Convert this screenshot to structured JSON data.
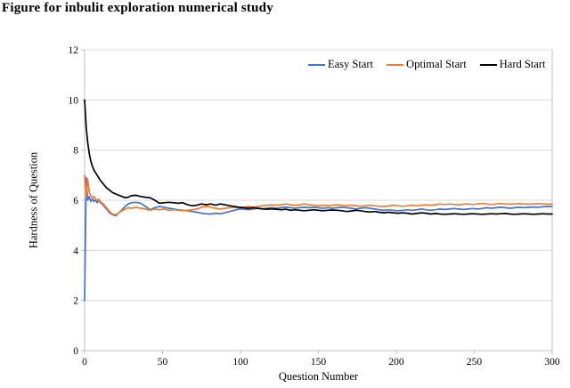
{
  "page": {
    "title": "Figure for inbulit exploration numerical study"
  },
  "chart_data": {
    "type": "line",
    "title": "Figure for inbulit exploration numerical study",
    "xlabel": "Question Number",
    "ylabel": "Hardness of Question",
    "xlim": [
      0,
      300
    ],
    "ylim": [
      0,
      12
    ],
    "x_ticks": [
      0,
      50,
      100,
      150,
      200,
      250,
      300
    ],
    "y_ticks": [
      0,
      2,
      4,
      6,
      8,
      10,
      12
    ],
    "grid": true,
    "legend_position": "top-right",
    "colors": {
      "grid": "#d9d9d9",
      "axis": "#bfbfbf",
      "text": "#000000"
    },
    "x": [
      0,
      1,
      2,
      3,
      4,
      5,
      6,
      7,
      8,
      9,
      10,
      12,
      14,
      16,
      18,
      20,
      22,
      24,
      26,
      28,
      30,
      33,
      36,
      39,
      42,
      45,
      48,
      51,
      54,
      57,
      60,
      63,
      66,
      69,
      72,
      75,
      78,
      81,
      84,
      87,
      90,
      93,
      96,
      99,
      102,
      105,
      108,
      111,
      114,
      117,
      120,
      123,
      126,
      129,
      132,
      135,
      138,
      141,
      144,
      147,
      150,
      153,
      156,
      159,
      162,
      165,
      168,
      171,
      174,
      177,
      180,
      183,
      186,
      189,
      192,
      195,
      198,
      201,
      204,
      207,
      210,
      213,
      216,
      219,
      222,
      225,
      228,
      231,
      234,
      237,
      240,
      243,
      246,
      249,
      252,
      255,
      258,
      261,
      264,
      267,
      270,
      273,
      276,
      279,
      282,
      285,
      288,
      291,
      294,
      297,
      300
    ],
    "series": [
      {
        "name": "Easy Start",
        "color": "#4472c4",
        "values": [
          2.0,
          6.9,
          6.0,
          6.15,
          5.95,
          6.05,
          5.95,
          6.02,
          5.9,
          5.97,
          5.92,
          5.8,
          5.65,
          5.5,
          5.42,
          5.38,
          5.5,
          5.62,
          5.75,
          5.85,
          5.9,
          5.92,
          5.88,
          5.75,
          5.62,
          5.7,
          5.75,
          5.72,
          5.68,
          5.65,
          5.62,
          5.6,
          5.58,
          5.55,
          5.52,
          5.48,
          5.46,
          5.45,
          5.48,
          5.46,
          5.5,
          5.55,
          5.6,
          5.65,
          5.65,
          5.62,
          5.65,
          5.68,
          5.65,
          5.68,
          5.7,
          5.68,
          5.7,
          5.72,
          5.7,
          5.68,
          5.7,
          5.72,
          5.7,
          5.72,
          5.7,
          5.68,
          5.7,
          5.68,
          5.7,
          5.72,
          5.7,
          5.68,
          5.65,
          5.68,
          5.7,
          5.68,
          5.65,
          5.62,
          5.6,
          5.62,
          5.6,
          5.58,
          5.6,
          5.62,
          5.6,
          5.62,
          5.65,
          5.62,
          5.6,
          5.62,
          5.65,
          5.63,
          5.65,
          5.67,
          5.65,
          5.63,
          5.65,
          5.67,
          5.65,
          5.67,
          5.7,
          5.68,
          5.7,
          5.72,
          5.7,
          5.68,
          5.7,
          5.72,
          5.7,
          5.72,
          5.73,
          5.72,
          5.74,
          5.75,
          5.75
        ]
      },
      {
        "name": "Optimal Start",
        "color": "#ed7d31",
        "values": [
          7.0,
          6.1,
          6.85,
          6.3,
          6.2,
          6.1,
          6.15,
          6.05,
          6.0,
          6.05,
          5.95,
          5.85,
          5.7,
          5.55,
          5.45,
          5.42,
          5.5,
          5.58,
          5.65,
          5.7,
          5.68,
          5.72,
          5.68,
          5.65,
          5.6,
          5.65,
          5.62,
          5.65,
          5.6,
          5.62,
          5.6,
          5.58,
          5.6,
          5.62,
          5.65,
          5.72,
          5.75,
          5.72,
          5.68,
          5.65,
          5.68,
          5.7,
          5.72,
          5.7,
          5.72,
          5.75,
          5.72,
          5.75,
          5.78,
          5.8,
          5.82,
          5.8,
          5.82,
          5.85,
          5.82,
          5.8,
          5.82,
          5.85,
          5.82,
          5.8,
          5.78,
          5.8,
          5.78,
          5.8,
          5.82,
          5.8,
          5.78,
          5.8,
          5.78,
          5.76,
          5.78,
          5.8,
          5.78,
          5.76,
          5.75,
          5.77,
          5.8,
          5.78,
          5.76,
          5.78,
          5.8,
          5.78,
          5.8,
          5.82,
          5.8,
          5.82,
          5.85,
          5.83,
          5.85,
          5.83,
          5.82,
          5.84,
          5.85,
          5.83,
          5.85,
          5.87,
          5.85,
          5.83,
          5.85,
          5.87,
          5.85,
          5.84,
          5.85,
          5.86,
          5.85,
          5.84,
          5.85,
          5.86,
          5.85,
          5.84,
          5.85
        ]
      },
      {
        "name": "Hard Start",
        "color": "#000000",
        "values": [
          10.0,
          8.9,
          8.3,
          7.85,
          7.55,
          7.35,
          7.2,
          7.1,
          7.0,
          6.9,
          6.8,
          6.65,
          6.5,
          6.4,
          6.3,
          6.25,
          6.2,
          6.15,
          6.1,
          6.12,
          6.18,
          6.2,
          6.15,
          6.12,
          6.1,
          6.0,
          5.88,
          5.9,
          5.92,
          5.9,
          5.88,
          5.9,
          5.82,
          5.78,
          5.8,
          5.85,
          5.82,
          5.85,
          5.8,
          5.85,
          5.82,
          5.78,
          5.75,
          5.72,
          5.7,
          5.68,
          5.7,
          5.68,
          5.66,
          5.64,
          5.66,
          5.64,
          5.62,
          5.64,
          5.6,
          5.62,
          5.6,
          5.58,
          5.6,
          5.62,
          5.6,
          5.58,
          5.6,
          5.61,
          5.6,
          5.58,
          5.55,
          5.57,
          5.6,
          5.58,
          5.55,
          5.53,
          5.55,
          5.52,
          5.5,
          5.52,
          5.5,
          5.48,
          5.5,
          5.48,
          5.45,
          5.47,
          5.5,
          5.48,
          5.45,
          5.47,
          5.45,
          5.44,
          5.45,
          5.46,
          5.45,
          5.44,
          5.45,
          5.46,
          5.45,
          5.44,
          5.45,
          5.46,
          5.45,
          5.46,
          5.47,
          5.45,
          5.44,
          5.45,
          5.46,
          5.45,
          5.44,
          5.45,
          5.46,
          5.45,
          5.45
        ]
      }
    ]
  }
}
